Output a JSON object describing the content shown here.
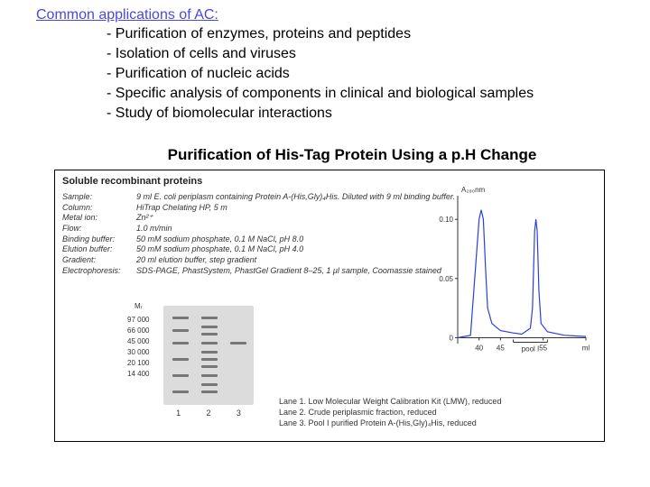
{
  "heading": "Common applications of AC:",
  "bullets": [
    "Purification of enzymes, proteins and peptides",
    "Isolation of cells and viruses",
    "Purification of nucleic acids",
    "Specific analysis of components in clinical and biological samples",
    "Study of biomolecular interactions"
  ],
  "subheading": "Purification of His-Tag Protein Using a p.H Change",
  "figure": {
    "box_title": "Soluble recombinant proteins",
    "params": [
      {
        "label": "Sample:",
        "value": "9 ml E. coli periplasm containing Protein A-(His,Gly)₄His. Diluted with 9 ml binding buffer."
      },
      {
        "label": "Column:",
        "value": "HiTrap Chelating HP, 5 m"
      },
      {
        "label": "Metal ion:",
        "value": "Zn²⁺"
      },
      {
        "label": "Flow:",
        "value": "1.0 m/min"
      },
      {
        "label": "Binding buffer:",
        "value": "50 mM sodium phosphate, 0.1 M NaCl, pH 8.0"
      },
      {
        "label": "Elution buffer:",
        "value": "50 mM sodium phosphate, 0.1 M NaCl, pH 4.0"
      },
      {
        "label": "Gradient:",
        "value": "20 ml elution buffer, step gradient"
      },
      {
        "label": "Electrophoresis:",
        "value": "SDS-PAGE, PhastSystem, PhastGel Gradient 8–25, 1 μl sample, Coomassie stained"
      }
    ],
    "mw_header": "Mᵣ",
    "mw_labels": [
      "97 000",
      "66 000",
      "45 000",
      "30 000",
      "20 100",
      "14 400"
    ],
    "gel": {
      "background": "#dcdcdc",
      "band_color": "#777777",
      "lanes": {
        "1": [
          12,
          26,
          40,
          58,
          76,
          94
        ],
        "2": [
          12,
          22,
          30,
          40,
          50,
          58,
          66,
          76,
          86,
          94
        ],
        "3": [
          40
        ]
      },
      "lane_width": 18,
      "lane_positions": [
        10,
        42,
        74
      ]
    },
    "lane_numbers": [
      "1",
      "2",
      "3"
    ],
    "lane_legend": [
      "Lane 1. Low Molecular Weight Calibration Kit (LMW), reduced",
      "Lane 2. Crude periplasmic fraction, reduced",
      "Lane 3. Pool I purified Protein A-(His,Gly)₄His, reduced"
    ],
    "chromatogram": {
      "y_label": "A₂₈₀nm",
      "y_ticks": [
        {
          "v": 0,
          "label": "0"
        },
        {
          "v": 0.05,
          "label": "0.05"
        },
        {
          "v": 0.1,
          "label": "0.10"
        }
      ],
      "x_ticks": [
        {
          "v": 40,
          "label": "40"
        },
        {
          "v": 45,
          "label": "45"
        },
        {
          "v": 55,
          "label": "55"
        },
        {
          "v": 65,
          "label": "ml"
        }
      ],
      "pool_label": "pool I",
      "pool_range": [
        48,
        56
      ],
      "xlim": [
        35,
        65
      ],
      "ylim": [
        -0.005,
        0.12
      ],
      "trace_color": "#2d3fe0",
      "axis_color": "#333333",
      "trace": [
        [
          35,
          0
        ],
        [
          38,
          0.002
        ],
        [
          40,
          0.1
        ],
        [
          40.5,
          0.108
        ],
        [
          41,
          0.1
        ],
        [
          41.5,
          0.06
        ],
        [
          42,
          0.025
        ],
        [
          43,
          0.012
        ],
        [
          45,
          0.006
        ],
        [
          48,
          0.004
        ],
        [
          50,
          0.003
        ],
        [
          52,
          0.008
        ],
        [
          52.5,
          0.025
        ],
        [
          53,
          0.09
        ],
        [
          53.3,
          0.1
        ],
        [
          53.6,
          0.09
        ],
        [
          54,
          0.04
        ],
        [
          54.5,
          0.012
        ],
        [
          56,
          0.005
        ],
        [
          60,
          0.002
        ],
        [
          65,
          0.001
        ]
      ]
    }
  }
}
